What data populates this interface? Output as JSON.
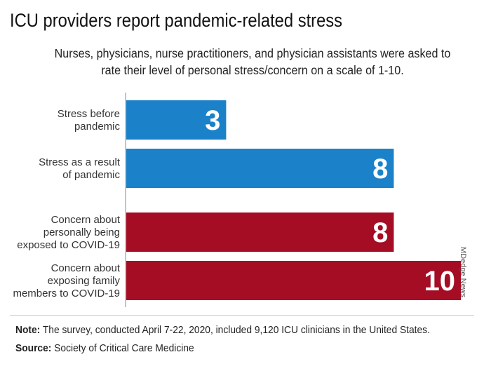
{
  "title": "ICU providers report pandemic-related stress",
  "subtitle": "Nurses, physicians, nurse practitioners, and physician assistants were asked to rate their level of personal stress/concern on a scale of 1-10.",
  "credit": "MDedge News",
  "note": {
    "label": "Note:",
    "text": "The survey, conducted April 7-22, 2020, included 9,120 ICU clinicians in the United States."
  },
  "source": {
    "label": "Source:",
    "text": "Society of Critical Care Medicine"
  },
  "colors": {
    "blue": "#1b82c9",
    "red": "#a40d24",
    "axis": "#c4c4c4",
    "label_text": "#333333",
    "value_text": "#ffffff"
  },
  "chart_data": {
    "type": "bar",
    "orientation": "horizontal",
    "categories": [
      [
        "Stress before",
        "pandemic"
      ],
      [
        "Stress as a result",
        "of pandemic"
      ],
      [
        "Concern about",
        "personally being",
        "exposed to COVID-19"
      ],
      [
        "Concern about",
        "exposing family",
        "members to COVID-19"
      ]
    ],
    "values": [
      3,
      8,
      8,
      10
    ],
    "value_labels": [
      "3",
      "8",
      "8",
      "10"
    ],
    "bar_colors": [
      "blue",
      "blue",
      "red",
      "red"
    ],
    "xlim": [
      0,
      10
    ],
    "data_labels": "inside-end",
    "grid": false,
    "legend": "none"
  }
}
